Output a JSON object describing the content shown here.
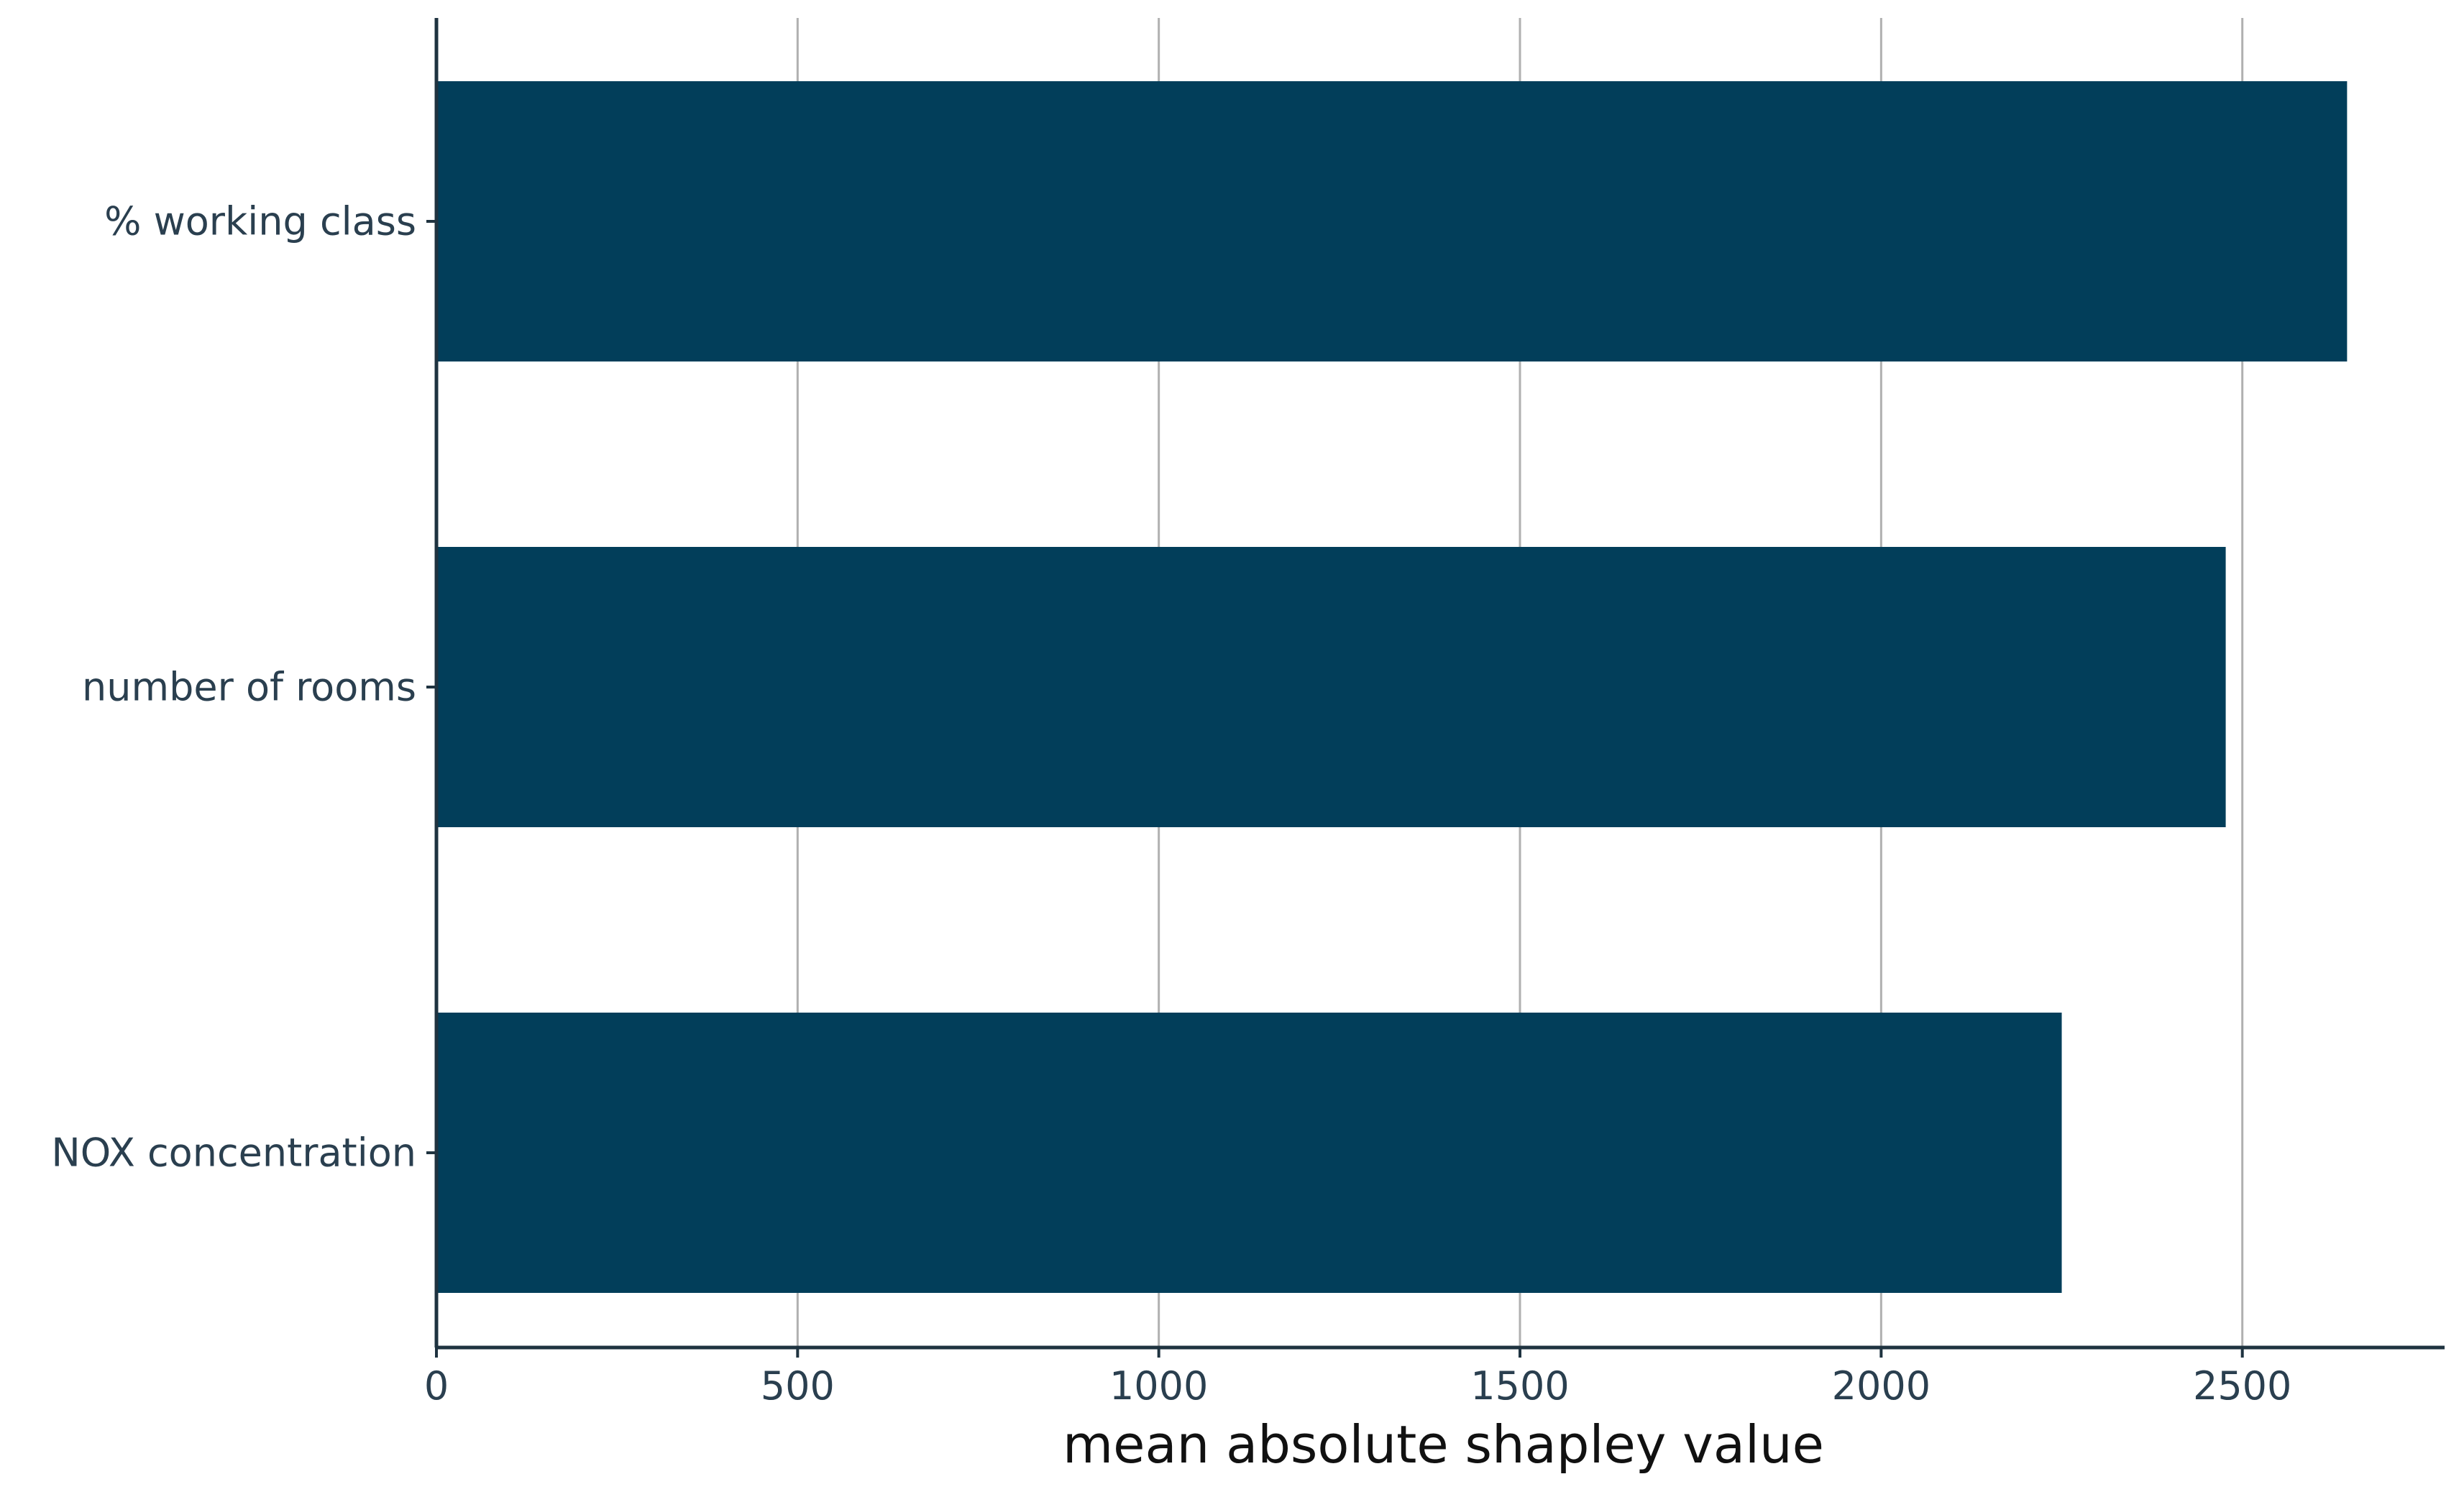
{
  "chart_data": {
    "type": "bar",
    "orientation": "horizontal",
    "categories": [
      "% working class",
      "number of rooms",
      "NOX concentration"
    ],
    "values": [
      2645,
      2477,
      2250
    ],
    "xlabel": "mean absolute shapley value",
    "ylabel": "",
    "title": "",
    "xlim": [
      0,
      2780
    ],
    "xticks": [
      0,
      500,
      1000,
      1500,
      2000,
      2500
    ],
    "xtick_labels": [
      "0",
      "500",
      "1000",
      "1500",
      "2000",
      "2500"
    ],
    "grid": "vertical",
    "legend": "none",
    "colors": {
      "bar": "#023e5a",
      "axis": "#1f3340",
      "grid": "#b0b0b0",
      "tick_text": "#2a3f4f",
      "title_text": "#111111"
    }
  }
}
